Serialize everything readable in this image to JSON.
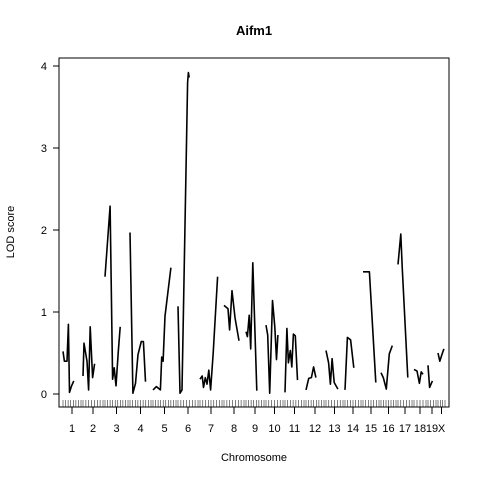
{
  "chart_data": {
    "type": "line",
    "title": "Aifm1",
    "xlabel": "Chromosome",
    "ylabel": "LOD score",
    "ylim": [
      0,
      4.1
    ],
    "yticks": [
      0,
      1,
      2,
      3,
      4
    ],
    "grid": false,
    "chromosomes": [
      {
        "name": "1",
        "points": [
          [
            0.0,
            0.52
          ],
          [
            0.08,
            0.4
          ],
          [
            0.22,
            0.4
          ],
          [
            0.3,
            0.85
          ],
          [
            0.36,
            0.02
          ],
          [
            0.48,
            0.1
          ],
          [
            0.6,
            0.16
          ]
        ]
      },
      {
        "name": "2",
        "points": [
          [
            0.0,
            0.22
          ],
          [
            0.05,
            0.62
          ],
          [
            0.2,
            0.4
          ],
          [
            0.28,
            0.05
          ],
          [
            0.36,
            0.82
          ],
          [
            0.48,
            0.2
          ],
          [
            0.58,
            0.37
          ]
        ]
      },
      {
        "name": "3",
        "points": [
          [
            0.0,
            1.43
          ],
          [
            0.22,
            2.29
          ],
          [
            0.33,
            0.18
          ],
          [
            0.4,
            0.32
          ],
          [
            0.48,
            0.1
          ],
          [
            0.58,
            0.52
          ],
          [
            0.66,
            0.82
          ]
        ]
      },
      {
        "name": "4",
        "points": [
          [
            0.0,
            1.97
          ],
          [
            0.14,
            0.01
          ],
          [
            0.26,
            0.13
          ],
          [
            0.38,
            0.48
          ],
          [
            0.54,
            0.64
          ],
          [
            0.64,
            0.64
          ],
          [
            0.74,
            0.15
          ]
        ]
      },
      {
        "name": "5",
        "points": [
          [
            0.0,
            0.05
          ],
          [
            0.15,
            0.09
          ],
          [
            0.32,
            0.05
          ],
          [
            0.38,
            0.45
          ],
          [
            0.44,
            0.4
          ],
          [
            0.52,
            0.95
          ],
          [
            0.78,
            1.54
          ]
        ]
      },
      {
        "name": "6",
        "points": [
          [
            0.0,
            1.07
          ],
          [
            0.1,
            0.01
          ],
          [
            0.2,
            0.05
          ],
          [
            0.48,
            3.8
          ],
          [
            0.52,
            3.92
          ],
          [
            0.56,
            3.86
          ]
        ]
      },
      {
        "name": "7",
        "points": [
          [
            0.0,
            0.18
          ],
          [
            0.1,
            0.22
          ],
          [
            0.16,
            0.08
          ],
          [
            0.24,
            0.2
          ],
          [
            0.32,
            0.12
          ],
          [
            0.4,
            0.29
          ],
          [
            0.48,
            0.05
          ],
          [
            0.6,
            0.5
          ],
          [
            0.8,
            1.43
          ]
        ]
      },
      {
        "name": "8",
        "points": [
          [
            0.0,
            1.08
          ],
          [
            0.2,
            1.04
          ],
          [
            0.28,
            0.78
          ],
          [
            0.4,
            1.26
          ],
          [
            0.55,
            0.93
          ],
          [
            0.75,
            0.65
          ]
        ]
      },
      {
        "name": "9",
        "points": [
          [
            0.0,
            0.76
          ],
          [
            0.08,
            0.7
          ],
          [
            0.18,
            0.96
          ],
          [
            0.26,
            0.55
          ],
          [
            0.38,
            1.6
          ],
          [
            0.6,
            0.04
          ]
        ]
      },
      {
        "name": "10",
        "points": [
          [
            0.0,
            0.84
          ],
          [
            0.1,
            0.72
          ],
          [
            0.22,
            0.01
          ],
          [
            0.38,
            1.14
          ],
          [
            0.52,
            0.82
          ],
          [
            0.62,
            0.42
          ],
          [
            0.7,
            0.72
          ]
        ]
      },
      {
        "name": "11",
        "points": [
          [
            0.0,
            0.02
          ],
          [
            0.1,
            0.8
          ],
          [
            0.18,
            0.38
          ],
          [
            0.28,
            0.53
          ],
          [
            0.36,
            0.33
          ],
          [
            0.44,
            0.73
          ],
          [
            0.54,
            0.71
          ],
          [
            0.66,
            0.17
          ]
        ]
      },
      {
        "name": "12",
        "points": [
          [
            0.0,
            0.05
          ],
          [
            0.15,
            0.19
          ],
          [
            0.3,
            0.2
          ],
          [
            0.42,
            0.33
          ],
          [
            0.55,
            0.2
          ]
        ]
      },
      {
        "name": "13",
        "points": [
          [
            0.0,
            0.53
          ],
          [
            0.15,
            0.38
          ],
          [
            0.26,
            0.12
          ],
          [
            0.36,
            0.43
          ],
          [
            0.48,
            0.14
          ],
          [
            0.7,
            0.06
          ]
        ]
      },
      {
        "name": "14",
        "points": [
          [
            0.0,
            0.05
          ],
          [
            0.15,
            0.69
          ],
          [
            0.35,
            0.66
          ],
          [
            0.55,
            0.32
          ]
        ]
      },
      {
        "name": "15",
        "points": [
          [
            0.0,
            1.49
          ],
          [
            0.4,
            1.49
          ],
          [
            0.8,
            0.14
          ]
        ]
      },
      {
        "name": "16",
        "points": [
          [
            0.0,
            0.26
          ],
          [
            0.15,
            0.2
          ],
          [
            0.35,
            0.06
          ],
          [
            0.55,
            0.49
          ],
          [
            0.75,
            0.59
          ]
        ]
      },
      {
        "name": "17",
        "points": [
          [
            0.0,
            1.58
          ],
          [
            0.2,
            1.95
          ],
          [
            0.3,
            1.55
          ],
          [
            0.7,
            0.2
          ]
        ]
      },
      {
        "name": "18",
        "points": [
          [
            0.0,
            0.3
          ],
          [
            0.25,
            0.28
          ],
          [
            0.45,
            0.13
          ],
          [
            0.6,
            0.27
          ],
          [
            0.75,
            0.24
          ]
        ]
      },
      {
        "name": "19",
        "points": [
          [
            0.0,
            0.35
          ],
          [
            0.2,
            0.08
          ],
          [
            0.55,
            0.16
          ]
        ]
      },
      {
        "name": "X",
        "points": [
          [
            0.0,
            0.5
          ],
          [
            0.25,
            0.4
          ],
          [
            0.55,
            0.48
          ],
          [
            0.85,
            0.55
          ]
        ]
      }
    ]
  }
}
